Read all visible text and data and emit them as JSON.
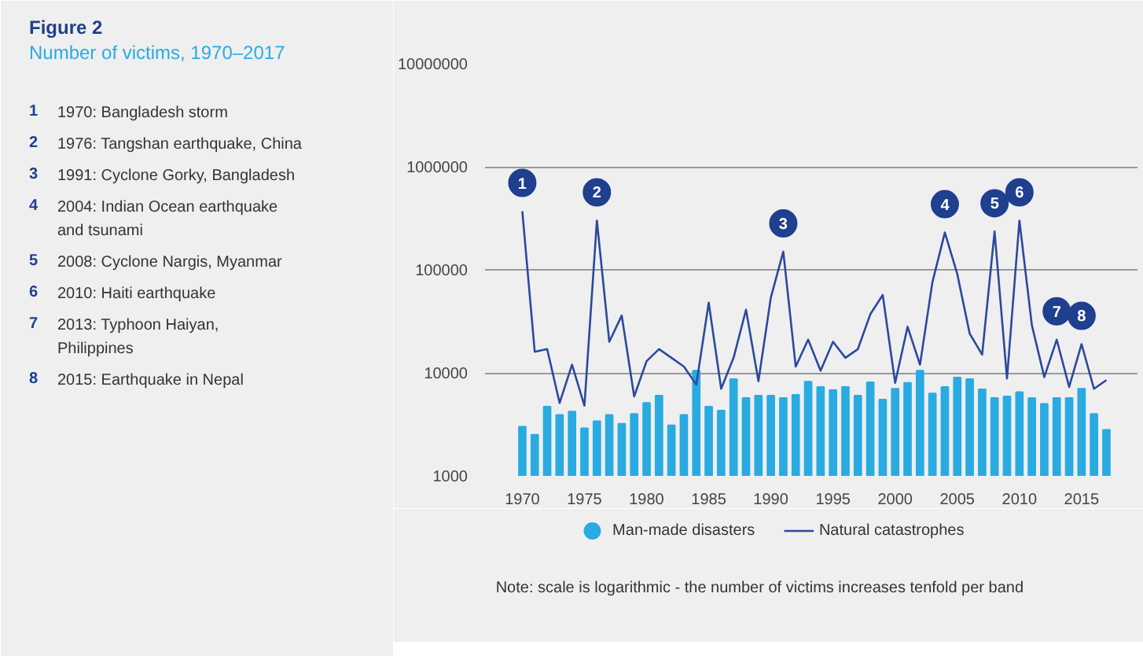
{
  "chart_data": {
    "type": "bar",
    "title": "Figure 2",
    "subtitle": "Number of victims, 1970–2017",
    "x": [
      1970,
      1971,
      1972,
      1973,
      1974,
      1975,
      1976,
      1977,
      1978,
      1979,
      1980,
      1981,
      1982,
      1983,
      1984,
      1985,
      1986,
      1987,
      1988,
      1989,
      1990,
      1991,
      1992,
      1993,
      1994,
      1995,
      1996,
      1997,
      1998,
      1999,
      2000,
      2001,
      2002,
      2003,
      2004,
      2005,
      2006,
      2007,
      2008,
      2009,
      2010,
      2011,
      2012,
      2013,
      2014,
      2015,
      2016,
      2017
    ],
    "series": [
      {
        "name": "Man-made disasters",
        "color": "#29abe2",
        "values": [
          3000,
          2500,
          4700,
          3900,
          4200,
          2900,
          3400,
          3900,
          3200,
          4000,
          5100,
          6000,
          3100,
          3900,
          10500,
          4700,
          4300,
          8700,
          5700,
          6000,
          6000,
          5700,
          6100,
          8200,
          7300,
          6800,
          7300,
          6000,
          8100,
          5500,
          7000,
          8000,
          10500,
          6300,
          7300,
          9000,
          8700,
          6900,
          5700,
          5900,
          6500,
          5700,
          5000,
          5700,
          5700,
          7000,
          4000,
          2800
        ]
      },
      {
        "name": "Natural catastrophes",
        "type": "line",
        "color": "#2b4a9c",
        "values": [
          370000,
          16000,
          17000,
          5100,
          12000,
          4800,
          300000,
          20000,
          36000,
          5900,
          13000,
          17000,
          14000,
          11500,
          7700,
          48000,
          7000,
          14000,
          41000,
          8300,
          54000,
          150000,
          11500,
          21000,
          10500,
          20000,
          14000,
          17000,
          37000,
          57000,
          8000,
          28000,
          12000,
          76000,
          230000,
          91000,
          24000,
          15000,
          235000,
          8800,
          300000,
          29000,
          9100,
          21000,
          7300,
          19000,
          7000,
          8500
        ]
      }
    ],
    "log": "y",
    "ylim": [
      1000,
      10000000
    ],
    "yticks": [
      1000,
      10000,
      100000,
      1000000,
      10000000
    ],
    "xlim": [
      1967,
      2019.5
    ],
    "xticks": [
      1970,
      1975,
      1980,
      1985,
      1990,
      1995,
      2000,
      2005,
      2010,
      2015
    ],
    "grid": "y",
    "legend": "bottom",
    "annotations": [
      {
        "text": "1",
        "x": 1970,
        "y": 370000
      },
      {
        "text": "2",
        "x": 1976,
        "y": 300000
      },
      {
        "text": "3",
        "x": 1991,
        "y": 150000
      },
      {
        "text": "4",
        "x": 2004,
        "y": 230000
      },
      {
        "text": "5",
        "x": 2008,
        "y": 235000
      },
      {
        "text": "6",
        "x": 2010,
        "y": 300000
      },
      {
        "text": "7",
        "x": 2013,
        "y": 21000
      },
      {
        "text": "8",
        "x": 2015,
        "y": 19000
      },
      "1 1970: Bangladesh storm",
      "2 1976: Tangshan earthquake, China",
      "3 1991: Cyclone Gorky, Bangladesh",
      "4 2004: Indian Ocean earthquake and tsunami",
      "5 2008: Cyclone Nargis, Myanmar",
      "6 2010: Haiti earthquake",
      "7 2013: Typhoon Haiyan, Philippines",
      "8 2015: Earthquake in Nepal",
      "Note: scale is logarithmic - the number of victims increases tenfold per band"
    ]
  }
}
